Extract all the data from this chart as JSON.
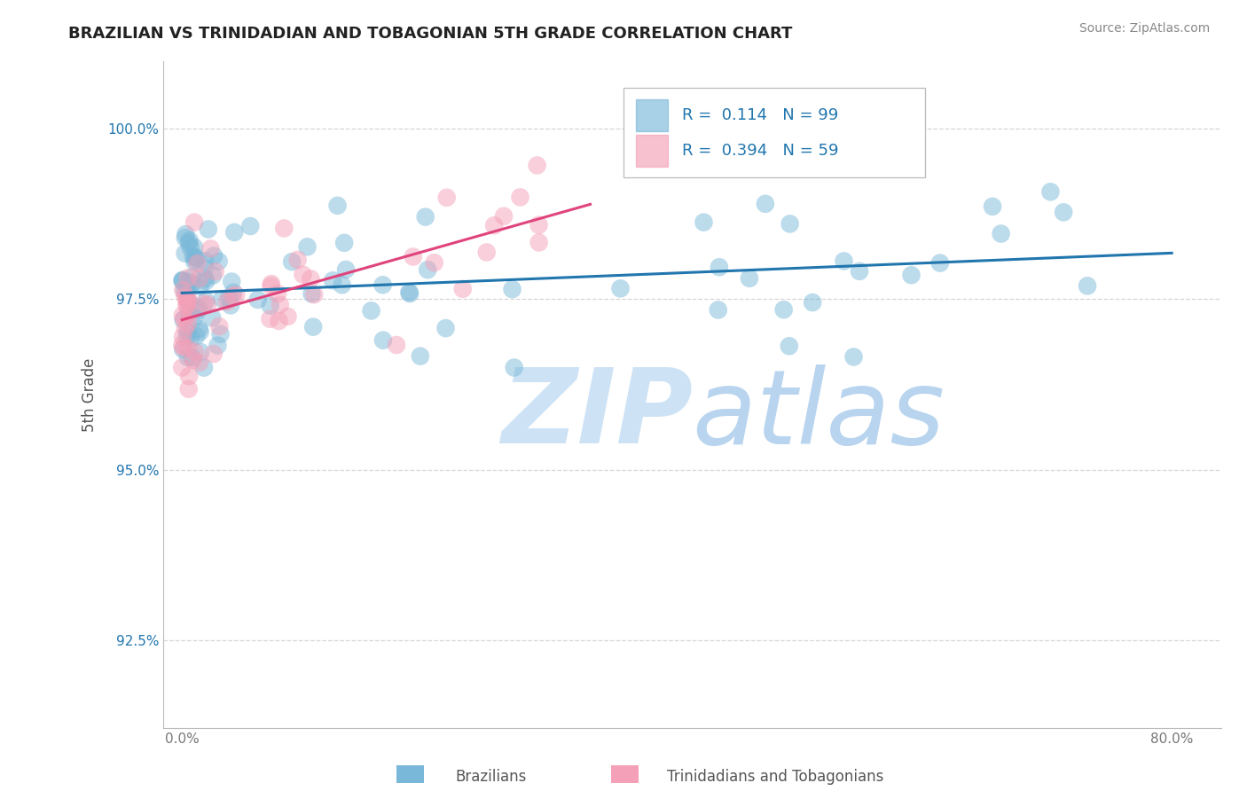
{
  "title": "BRAZILIAN VS TRINIDADIAN AND TOBAGONIAN 5TH GRADE CORRELATION CHART",
  "source": "Source: ZipAtlas.com",
  "ylabel": "5th Grade",
  "r_blue": 0.114,
  "n_blue": 99,
  "r_pink": 0.394,
  "n_pink": 59,
  "blue_scatter_color": "#7ab8d9",
  "pink_scatter_color": "#f4a0b8",
  "blue_line_color": "#2176ae",
  "pink_line_color": "#e0447c",
  "tick_color_y": "#2176ae",
  "tick_color_x": "#777777",
  "grid_color": "#cccccc",
  "watermark_zip_color": "#cde3f5",
  "watermark_atlas_color": "#b8d4ee",
  "title_color": "#222222",
  "source_color": "#888888",
  "label_color": "#555555",
  "legend_r_color": "#2176ae",
  "bottom_labels": [
    "Brazilians",
    "Trinidadians and Tobagonians"
  ],
  "seed": 1234
}
